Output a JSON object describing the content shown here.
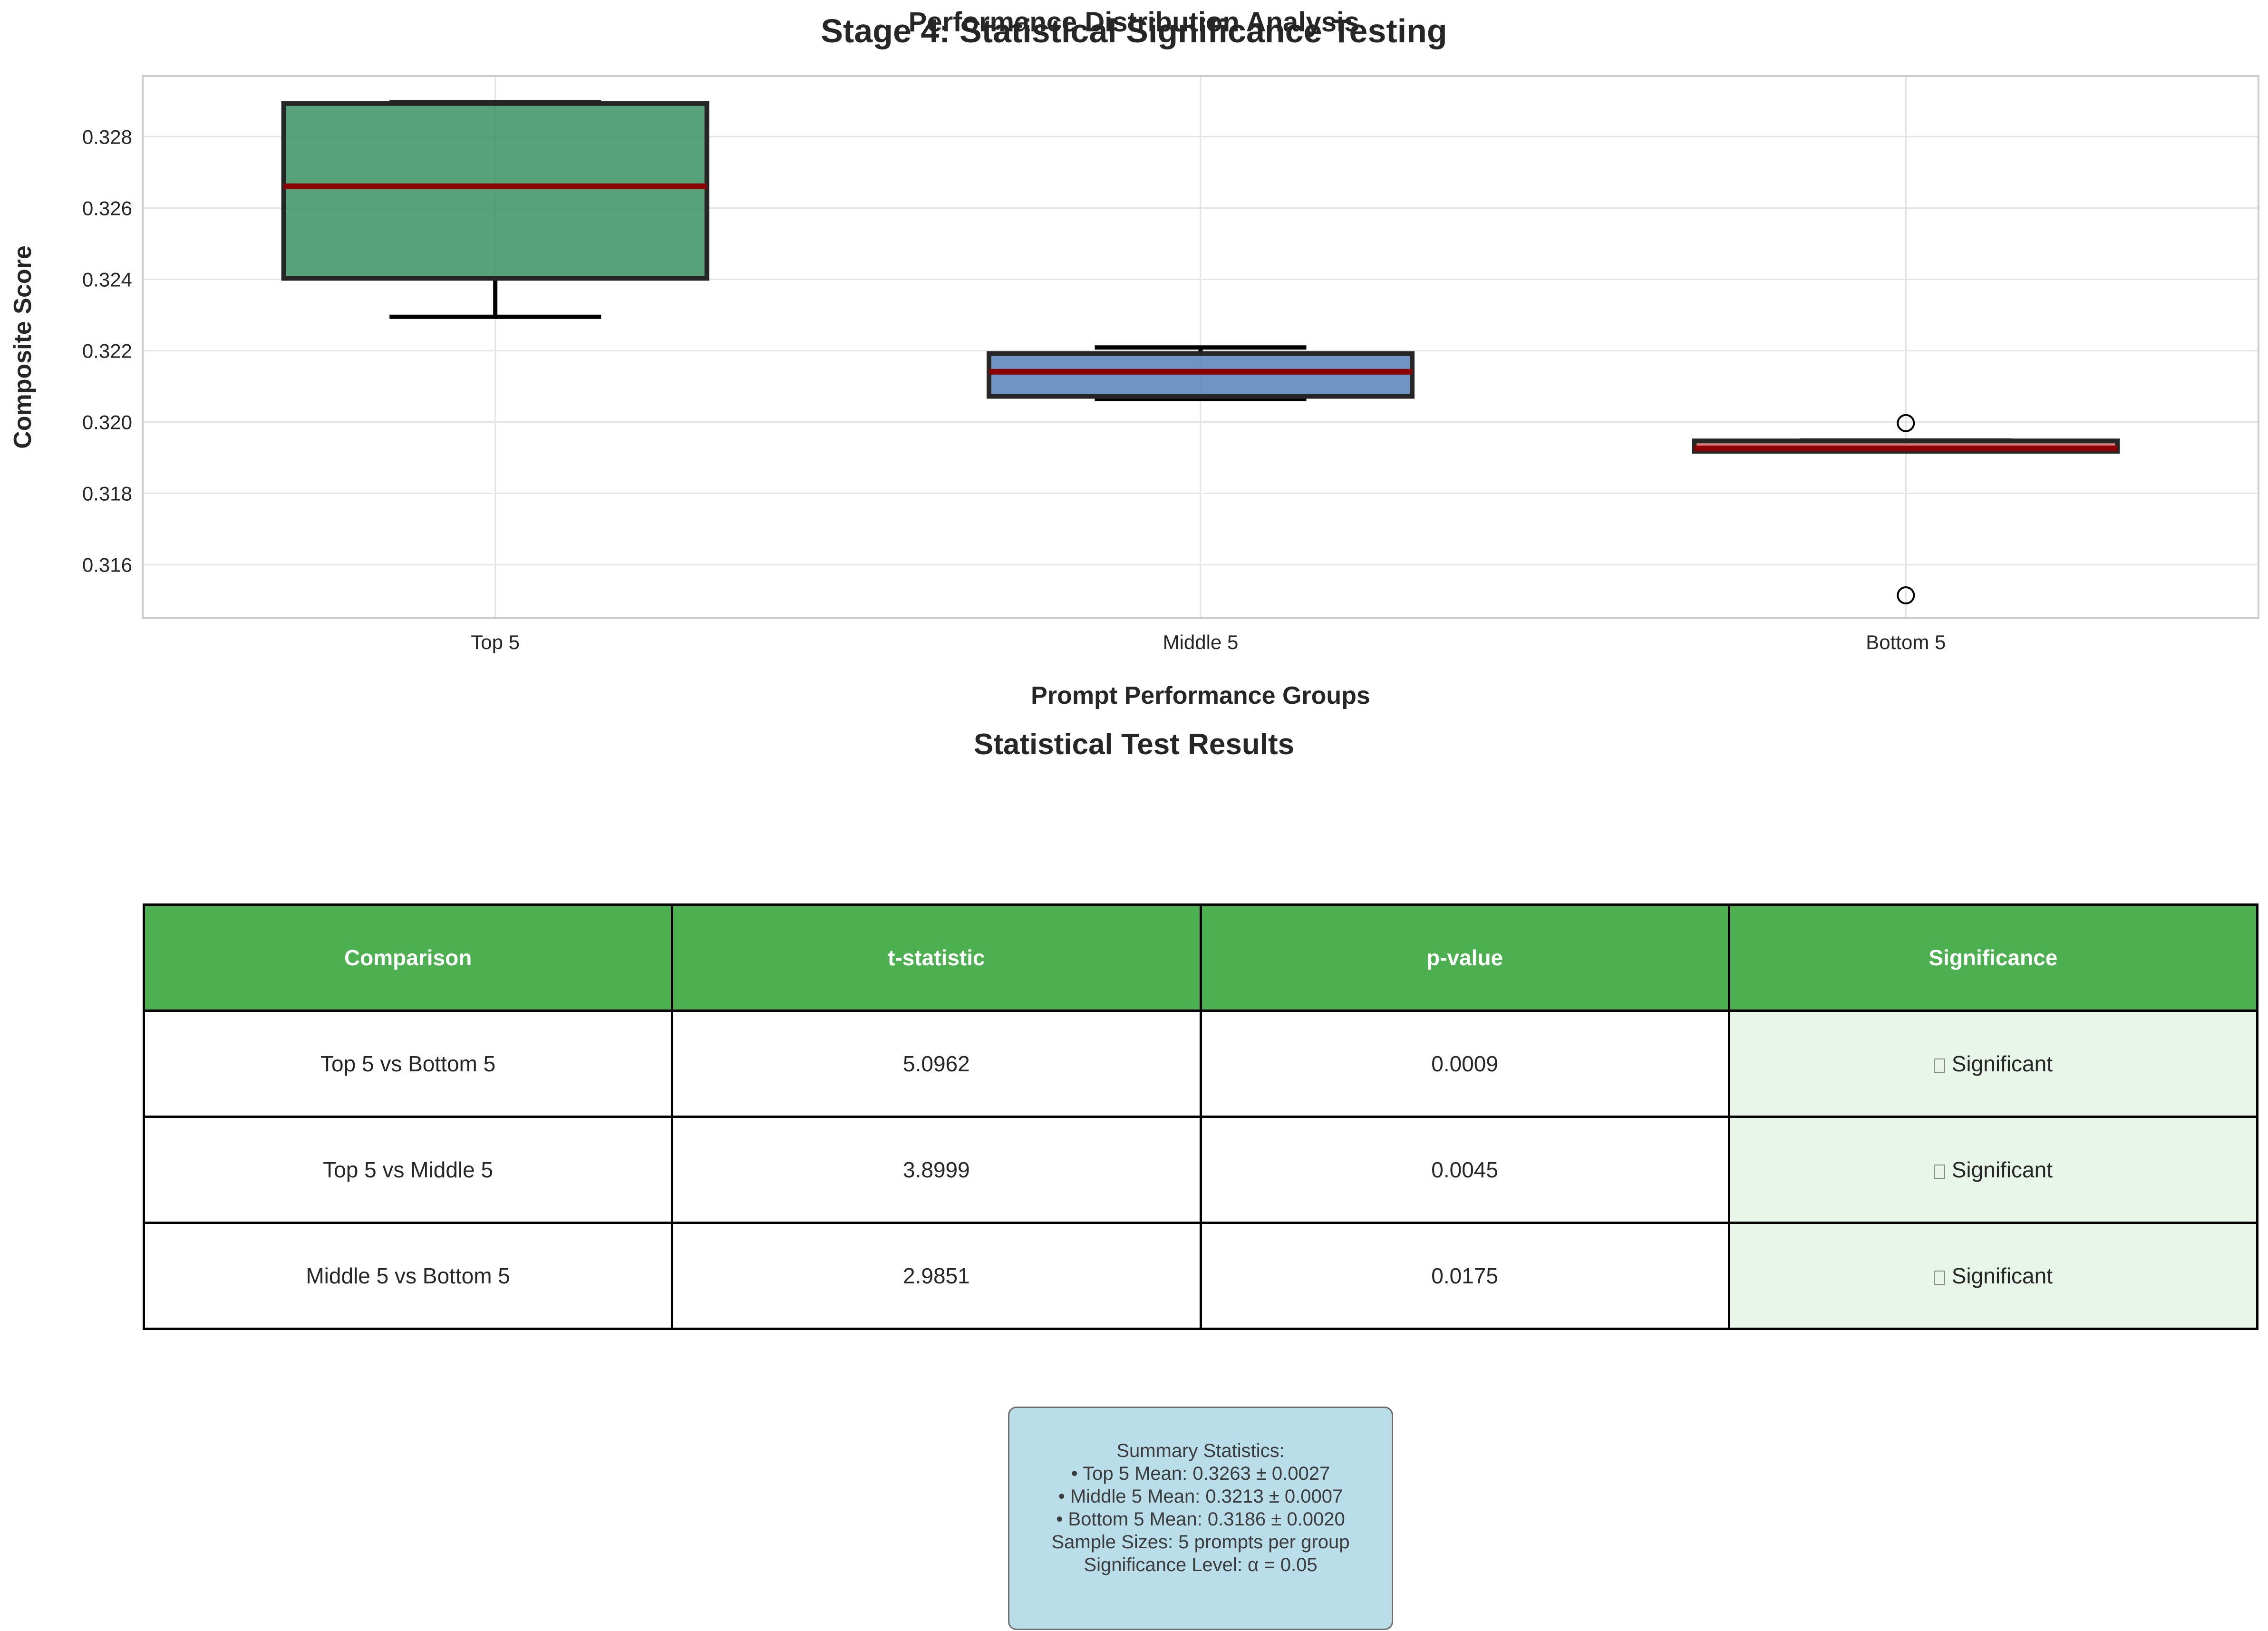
{
  "figure": {
    "main_title": "Stage 4: Statistical Significance Testing",
    "subtitle": "Performance Distribution Analysis"
  },
  "chart_data": {
    "type": "box",
    "xlabel": "Prompt Performance Groups",
    "ylabel": "Composite Score",
    "ylim": [
      0.3145,
      0.3297
    ],
    "yticks": [
      "0.316",
      "0.318",
      "0.320",
      "0.322",
      "0.324",
      "0.326",
      "0.328"
    ],
    "grid": true,
    "median_color": "#8b0000",
    "categories": [
      "Top 5",
      "Middle 5",
      "Bottom 5"
    ],
    "boxes": [
      {
        "name": "Top 5",
        "color": "#2e8b57",
        "whisker_low": 0.32295,
        "q1": 0.32403,
        "median": 0.32661,
        "q3": 0.32893,
        "whisker_high": 0.32896,
        "outliers": []
      },
      {
        "name": "Middle 5",
        "color": "#4a7ab5",
        "whisker_low": 0.32065,
        "q1": 0.32072,
        "median": 0.32141,
        "q3": 0.32192,
        "whisker_high": 0.32209,
        "outliers": []
      },
      {
        "name": "Bottom 5",
        "color": "#cd5c5c",
        "whisker_low": 0.31918,
        "q1": 0.31918,
        "median": 0.31926,
        "q3": 0.31947,
        "whisker_high": 0.31948,
        "outliers": [
          0.31997,
          0.31514
        ]
      }
    ]
  },
  "table": {
    "title": "Statistical Test Results",
    "headers": [
      "Comparison",
      "t-statistic",
      "p-value",
      "Significance"
    ],
    "rows": [
      [
        "Top 5 vs Bottom 5",
        "5.0962",
        "0.0009",
        "Significant"
      ],
      [
        "Top 5 vs Middle 5",
        "3.8999",
        "0.0045",
        "Significant"
      ],
      [
        "Middle 5 vs Bottom 5",
        "2.9851",
        "0.0175",
        "Significant"
      ]
    ],
    "header_color": "#4caf50",
    "significant_color": "#e8f5e9"
  },
  "summary": {
    "lines": [
      "Summary Statistics:",
      "• Top 5 Mean: 0.3263 ± 0.0027",
      "• Middle 5 Mean: 0.3213 ± 0.0007",
      "• Bottom 5 Mean: 0.3186 ± 0.0020",
      "",
      "Sample Sizes: 5 prompts per group",
      "Significance Level: α = 0.05"
    ]
  }
}
